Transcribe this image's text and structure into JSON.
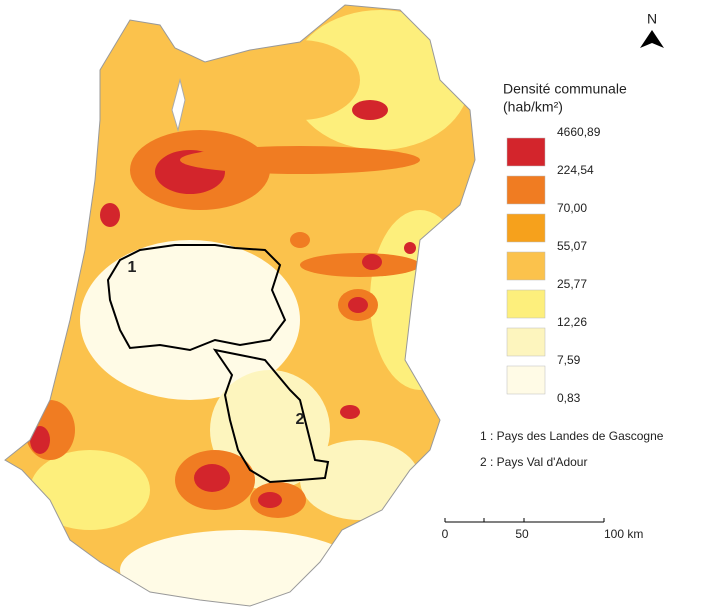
{
  "legend": {
    "title": "Densité  communale",
    "unit": "(hab/km²)",
    "breaks": [
      "4660,89",
      "224,54",
      "70,00",
      "55,07",
      "25,77",
      "12,26",
      "7,59",
      "0,83"
    ],
    "colors": [
      "#d3252c",
      "#f07c22",
      "#f6a11c",
      "#fbc24c",
      "#fdef7c",
      "#fdf5be",
      "#fffbe6"
    ]
  },
  "pays": [
    {
      "number": "1",
      "label": "1 : Pays des Landes de Gascogne"
    },
    {
      "number": "2",
      "label": "2 : Pays Val d'Adour"
    }
  ],
  "north": "N",
  "scale": [
    "0",
    "50",
    "100 km"
  ]
}
